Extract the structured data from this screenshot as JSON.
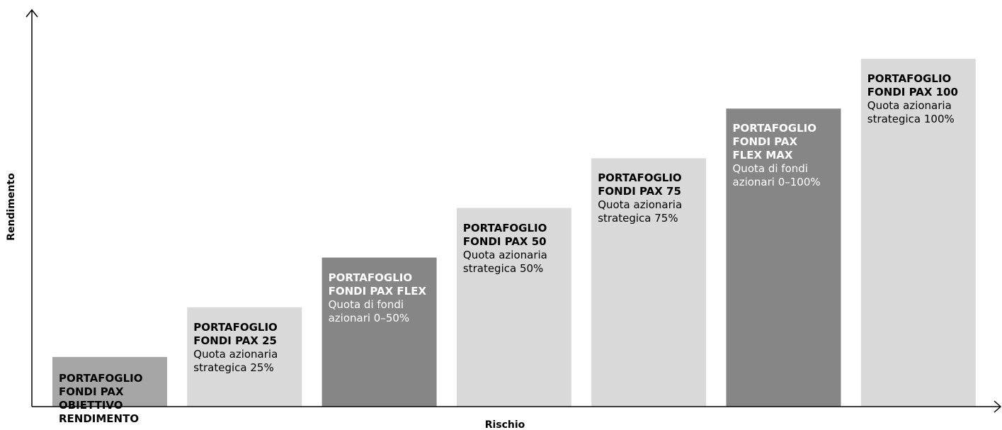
{
  "chart_data": {
    "type": "bar",
    "xlabel": "Rischio",
    "ylabel": "Rendimento",
    "categories": [
      "PORTAFOGLIO\nFONDI PAX\nOBIETTIVO\nRENDIMENTO",
      "PORTAFOGLIO\nFONDI PAX 25",
      "PORTAFOGLIO\nFONDI PAX FLEX",
      "PORTAFOGLIO\nFONDI PAX 50",
      "PORTAFOGLIO\nFONDI PAX 75",
      "PORTAFOGLIO\nFONDI PAX\nFLEX MAX",
      "PORTAFOGLIO\nFONDI PAX 100"
    ],
    "descriptions": [
      "",
      "Quota azionaria\nstrategica 25%",
      "Quota di fondi\nazionari 0–50%",
      "Quota azionaria\nstrategica 50%",
      "Quota azionaria\nstrategica 75%",
      "Quota di fondi\nazionari 0–100%",
      "Quota azionaria\nstrategica 100%"
    ],
    "values": [
      1,
      2,
      3,
      4,
      5,
      6,
      7
    ],
    "ylim": [
      0,
      8
    ],
    "bar_colors": [
      "#a6a6a6",
      "#d9d9d9",
      "#868686",
      "#d9d9d9",
      "#d9d9d9",
      "#868686",
      "#d9d9d9"
    ],
    "text_colors": [
      "#000000",
      "#000000",
      "#ffffff",
      "#000000",
      "#000000",
      "#ffffff",
      "#000000"
    ],
    "grid": false,
    "legend": "none"
  }
}
